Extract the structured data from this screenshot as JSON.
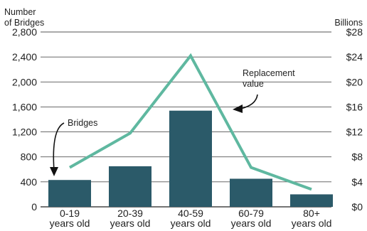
{
  "chart_data": {
    "type": "bar",
    "left_axis": {
      "title_line1": "Number",
      "title_line2": "of Bridges",
      "ylim": [
        0,
        2800
      ],
      "ticks": [
        0,
        400,
        800,
        1200,
        1600,
        2000,
        2400,
        2800
      ],
      "tick_labels": [
        "0",
        "400",
        "800",
        "1,200",
        "1,600",
        "2,000",
        "2,400",
        "2,800"
      ]
    },
    "right_axis": {
      "title": "Billions",
      "ylim": [
        0,
        28
      ],
      "ticks": [
        0,
        4,
        8,
        12,
        16,
        20,
        24,
        28
      ],
      "tick_labels": [
        "$0",
        "$4",
        "$8",
        "$12",
        "$16",
        "$20",
        "$24",
        "$28"
      ]
    },
    "categories": [
      [
        "0-19",
        "years old"
      ],
      [
        "20-39",
        "years old"
      ],
      [
        "40-59",
        "years old"
      ],
      [
        "60-79",
        "years old"
      ],
      [
        "80+",
        "years old"
      ]
    ],
    "series": [
      {
        "name": "Bridges",
        "type": "bar",
        "axis": "left",
        "color": "#2b5a69",
        "values": [
          430,
          650,
          1540,
          450,
          200
        ]
      },
      {
        "name": "Replacement value",
        "type": "line",
        "axis": "right",
        "color": "#5fb8a0",
        "values": [
          6.3,
          11.8,
          24.2,
          6.3,
          2.8
        ]
      }
    ],
    "annotations": {
      "bridges_label": "Bridges",
      "replacement_line1": "Replacement",
      "replacement_line2": "value"
    },
    "grid": true,
    "gridline_color": "#555555"
  }
}
